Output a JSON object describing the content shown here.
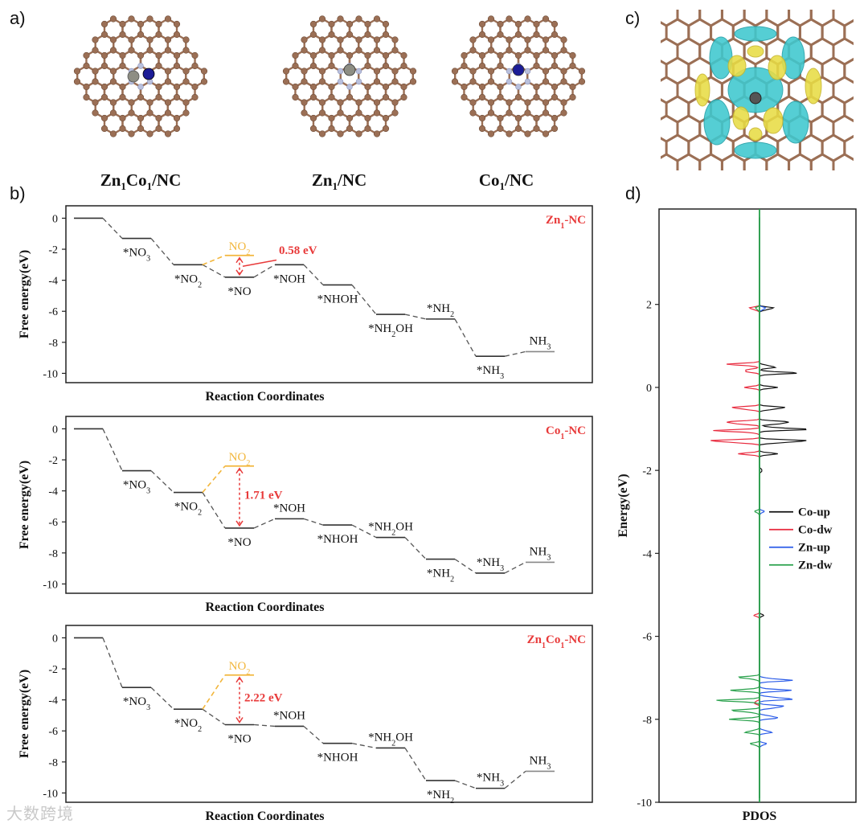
{
  "panel_labels": {
    "a": "a)",
    "b": "b)",
    "c": "c)",
    "d": "d)"
  },
  "structures": [
    {
      "caption": "Zn",
      "sub": "1",
      "caption2": "Co",
      "sub2": "1",
      "tail": "/NC",
      "metals": [
        "zn",
        "co"
      ]
    },
    {
      "caption": "Zn",
      "sub": "1",
      "caption2": "",
      "sub2": "",
      "tail": "/NC",
      "metals": [
        "zn"
      ]
    },
    {
      "caption": "Co",
      "sub": "1",
      "caption2": "",
      "sub2": "",
      "tail": "/NC",
      "metals": [
        "co"
      ]
    }
  ],
  "colors": {
    "carbon": "#9b6f55",
    "nitrogen": "#b9c0dd",
    "zinc": "#8e8e84",
    "cobalt": "#1c1c96",
    "profile": "#555555",
    "accent_red": "#e83a3a",
    "accent_orange": "#f2b63c",
    "co_up": "#111111",
    "co_dw": "#e8283c",
    "zn_up": "#2a5be8",
    "zn_dw": "#27a04a",
    "iso_cyan": "#3ec8cf",
    "iso_yellow": "#e8dc45"
  },
  "chart_data": [
    {
      "type": "line",
      "id": "energy-Zn1-NC",
      "title": "Zn1-NC",
      "ylabel": "Free energy(eV)",
      "xlabel": "Reaction Coordinates",
      "ylim": [
        -10.6,
        0.8
      ],
      "yticks": [
        0,
        -2,
        -4,
        -6,
        -8,
        -10
      ],
      "steps": [
        {
          "label": "",
          "energy": 0.0
        },
        {
          "label": "*NO3",
          "energy": -1.3
        },
        {
          "label": "*NO2",
          "energy": -3.0
        },
        {
          "label": "*NO",
          "energy": -3.8
        },
        {
          "label": "*NOH",
          "energy": -3.0
        },
        {
          "label": "*NHOH",
          "energy": -4.3
        },
        {
          "label": "*NH2OH",
          "energy": -6.2
        },
        {
          "label": "*NH2",
          "energy": -6.5
        },
        {
          "label": "*NH3",
          "energy": -8.9
        },
        {
          "label": "NH3",
          "energy": -8.6
        }
      ],
      "desorption": {
        "label": "NO2",
        "energy": -2.4
      },
      "barrier_label": "0.58 eV",
      "barrier_value": 0.58
    },
    {
      "type": "line",
      "id": "energy-Co1-NC",
      "title": "Co1-NC",
      "ylabel": "Free energy(eV)",
      "xlabel": "Reaction Coordinates",
      "ylim": [
        -10.6,
        0.8
      ],
      "yticks": [
        0,
        -2,
        -4,
        -6,
        -8,
        -10
      ],
      "steps": [
        {
          "label": "",
          "energy": 0.0
        },
        {
          "label": "*NO3",
          "energy": -2.7
        },
        {
          "label": "*NO2",
          "energy": -4.1
        },
        {
          "label": "*NO",
          "energy": -6.4
        },
        {
          "label": "*NOH",
          "energy": -5.8
        },
        {
          "label": "*NHOH",
          "energy": -6.2
        },
        {
          "label": "*NH2OH",
          "energy": -7.0
        },
        {
          "label": "*NH2",
          "energy": -8.4
        },
        {
          "label": "*NH3",
          "energy": -9.3
        },
        {
          "label": "NH3",
          "energy": -8.6
        }
      ],
      "desorption": {
        "label": "NO2",
        "energy": -2.4
      },
      "barrier_label": "1.71 eV",
      "barrier_value": 1.71
    },
    {
      "type": "line",
      "id": "energy-Zn1Co1-NC",
      "title": "Zn1Co1-NC",
      "ylabel": "Free energy(eV)",
      "xlabel": "Reaction Coordinates",
      "ylim": [
        -10.6,
        0.8
      ],
      "yticks": [
        0,
        -2,
        -4,
        -6,
        -8,
        -10
      ],
      "steps": [
        {
          "label": "",
          "energy": 0.0
        },
        {
          "label": "*NO3",
          "energy": -3.2
        },
        {
          "label": "*NO2",
          "energy": -4.6
        },
        {
          "label": "*NO",
          "energy": -5.6
        },
        {
          "label": "*NOH",
          "energy": -5.7
        },
        {
          "label": "*NHOH",
          "energy": -6.8
        },
        {
          "label": "*NH2OH",
          "energy": -7.1
        },
        {
          "label": "*NH2",
          "energy": -9.2
        },
        {
          "label": "*NH3",
          "energy": -9.7
        },
        {
          "label": "NH3",
          "energy": -8.6
        }
      ],
      "desorption": {
        "label": "NO2",
        "energy": -2.4
      },
      "barrier_label": "2.22 eV",
      "barrier_value": 2.22
    },
    {
      "type": "line",
      "id": "pdos",
      "title": "",
      "xlabel": "PDOS",
      "ylabel": "Energy(eV)",
      "ylim": [
        -10,
        4
      ],
      "yticks": [
        2,
        0,
        -2,
        -4,
        -6,
        -8,
        -10
      ],
      "legend": [
        "Co-up",
        "Co-dw",
        "Zn-up",
        "Zn-dw"
      ],
      "series": [
        {
          "name": "Co-up",
          "side": 1,
          "peaks": [
            [
              1.9,
              0.7
            ],
            [
              0.5,
              0.8
            ],
            [
              0.35,
              1.3
            ],
            [
              0.0,
              0.6
            ],
            [
              -0.5,
              1.3
            ],
            [
              -0.85,
              1.7
            ],
            [
              -1.0,
              2.0
            ],
            [
              -1.3,
              2.4
            ],
            [
              -1.6,
              0.6
            ],
            [
              -2.0,
              0.15
            ],
            [
              -5.5,
              0.15
            ]
          ]
        },
        {
          "name": "Co-dw",
          "side": -1,
          "peaks": [
            [
              1.9,
              0.5
            ],
            [
              0.55,
              1.2
            ],
            [
              0.4,
              0.9
            ],
            [
              0.0,
              0.5
            ],
            [
              -0.5,
              1.4
            ],
            [
              -0.85,
              1.9
            ],
            [
              -1.05,
              1.7
            ],
            [
              -1.3,
              2.5
            ],
            [
              -1.6,
              0.7
            ],
            [
              -5.5,
              0.2
            ],
            [
              -7.6,
              0.3
            ]
          ]
        },
        {
          "name": "Zn-up",
          "side": 1,
          "peaks": [
            [
              1.9,
              0.3
            ],
            [
              -3.0,
              0.2
            ],
            [
              -7.05,
              1.4
            ],
            [
              -7.3,
              1.1
            ],
            [
              -7.5,
              1.6
            ],
            [
              -7.7,
              1.3
            ],
            [
              -7.95,
              1.0
            ],
            [
              -8.3,
              0.6
            ],
            [
              -8.6,
              0.3
            ]
          ]
        },
        {
          "name": "Zn-dw",
          "side": -1,
          "peaks": [
            [
              1.9,
              0.2
            ],
            [
              -3.0,
              0.2
            ],
            [
              -7.0,
              0.9
            ],
            [
              -7.3,
              1.0
            ],
            [
              -7.55,
              1.5
            ],
            [
              -7.8,
              1.2
            ],
            [
              -8.0,
              1.0
            ],
            [
              -8.3,
              0.7
            ],
            [
              -8.6,
              0.4
            ]
          ]
        }
      ]
    }
  ],
  "labels": {
    "eff_title_parts": [
      {
        "main": "Zn",
        "sub": "1",
        "tail": "-NC"
      },
      {
        "main": "Co",
        "sub": "1",
        "tail": "-NC"
      },
      {
        "main": "Zn",
        "sub": "1",
        "main2": "Co",
        "sub2": "1",
        "tail": "-NC"
      }
    ]
  },
  "watermark": "大数跨境"
}
